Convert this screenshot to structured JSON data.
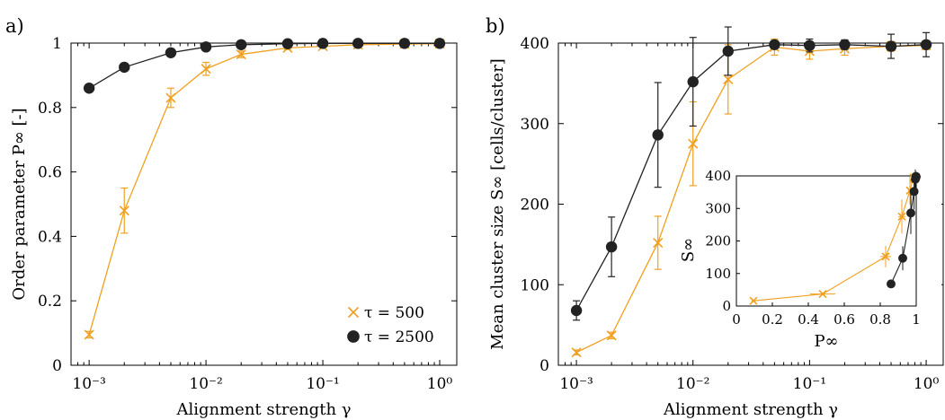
{
  "chart_data": [
    {
      "panel_label": "a)",
      "type": "line",
      "x_scale": "log",
      "xlim": [
        0.0007,
        1.4
      ],
      "ylim": [
        0,
        1
      ],
      "xlabel": "Alignment strength γ",
      "ylabel": "Order parameter P∞ [-]",
      "xticks": [
        0.001,
        0.01,
        0.1,
        1
      ],
      "xtick_labels": [
        "10⁻³",
        "10⁻²",
        "10⁻¹",
        "10⁰"
      ],
      "yticks": [
        0,
        0.2,
        0.4,
        0.6,
        0.8,
        1
      ],
      "ytick_labels": [
        "0",
        "0.2",
        "0.4",
        "0.6",
        "0.8",
        "1"
      ],
      "legend_position": "bottom-right",
      "series": [
        {
          "name": "τ = 500",
          "color": "#f0a020",
          "marker": "x",
          "x": [
            0.001,
            0.002,
            0.005,
            0.01,
            0.02,
            0.05,
            0.1,
            0.2,
            0.5,
            1
          ],
          "y": [
            0.095,
            0.48,
            0.83,
            0.92,
            0.965,
            0.985,
            0.99,
            0.995,
            0.997,
            0.998
          ],
          "err": [
            0.01,
            0.07,
            0.03,
            0.02,
            0.01,
            0.005,
            0.004,
            0.003,
            0.002,
            0.002
          ]
        },
        {
          "name": "τ = 2500",
          "color": "#222222",
          "marker": "o",
          "x": [
            0.001,
            0.002,
            0.005,
            0.01,
            0.02,
            0.05,
            0.1,
            0.2,
            0.5,
            1
          ],
          "y": [
            0.86,
            0.925,
            0.97,
            0.988,
            0.995,
            0.998,
            0.999,
            0.999,
            0.999,
            0.999
          ],
          "err": [
            0.01,
            0.01,
            0.006,
            0.004,
            0.003,
            0.002,
            0.001,
            0.001,
            0.001,
            0.001
          ]
        }
      ]
    },
    {
      "panel_label": "b)",
      "type": "line",
      "x_scale": "log",
      "xlim": [
        0.0007,
        1.4
      ],
      "ylim": [
        0,
        400
      ],
      "xlabel": "Alignment strength γ",
      "ylabel": "Mean cluster size S∞ [cells/cluster]",
      "xticks": [
        0.001,
        0.01,
        0.1,
        1
      ],
      "xtick_labels": [
        "10⁻³",
        "10⁻²",
        "10⁻¹",
        "10⁰"
      ],
      "yticks": [
        0,
        100,
        200,
        300,
        400
      ],
      "ytick_labels": [
        "0",
        "100",
        "200",
        "300",
        "400"
      ],
      "series": [
        {
          "name": "τ = 500",
          "color": "#f0a020",
          "marker": "x",
          "x": [
            0.001,
            0.002,
            0.005,
            0.01,
            0.02,
            0.05,
            0.1,
            0.2,
            0.5,
            1
          ],
          "y": [
            16,
            37,
            152,
            275,
            355,
            395,
            390,
            393,
            396,
            397
          ],
          "err": [
            3,
            4,
            33,
            52,
            43,
            10,
            10,
            8,
            6,
            5
          ]
        },
        {
          "name": "τ = 2500",
          "color": "#222222",
          "marker": "o",
          "x": [
            0.001,
            0.002,
            0.005,
            0.01,
            0.02,
            0.05,
            0.1,
            0.2,
            0.5,
            1
          ],
          "y": [
            68,
            147,
            286,
            352,
            390,
            398,
            397,
            398,
            396,
            398
          ],
          "err": [
            12,
            37,
            65,
            55,
            30,
            5,
            8,
            6,
            15,
            15
          ]
        }
      ],
      "inset": {
        "type": "scatter",
        "xlim": [
          0,
          1
        ],
        "ylim": [
          0,
          400
        ],
        "xlabel": "P∞",
        "ylabel": "S∞",
        "xticks": [
          0,
          0.2,
          0.4,
          0.6,
          0.8,
          1
        ],
        "xtick_labels": [
          "0",
          "0.2",
          "0.4",
          "0.6",
          "0.8",
          "1"
        ],
        "yticks": [
          0,
          100,
          200,
          300,
          400
        ],
        "ytick_labels": [
          "0",
          "100",
          "200",
          "300",
          "400"
        ],
        "series": [
          {
            "name": "τ = 500",
            "color": "#f0a020",
            "marker": "x",
            "x": [
              0.095,
              0.48,
              0.83,
              0.92,
              0.965,
              0.985,
              0.99,
              0.995,
              0.997,
              0.998
            ],
            "y": [
              16,
              37,
              152,
              275,
              355,
              395,
              390,
              393,
              396,
              397
            ],
            "xerr": [
              0.01,
              0.07,
              0.03,
              0.02,
              0.01,
              0.005,
              0.004,
              0.003,
              0.002,
              0.002
            ],
            "yerr": [
              3,
              4,
              33,
              52,
              43,
              10,
              10,
              8,
              6,
              5
            ]
          },
          {
            "name": "τ = 2500",
            "color": "#222222",
            "marker": "o",
            "x": [
              0.86,
              0.925,
              0.97,
              0.988,
              0.995,
              0.998,
              0.999,
              0.999,
              0.999,
              0.999
            ],
            "y": [
              68,
              147,
              286,
              352,
              390,
              398,
              397,
              398,
              396,
              398
            ],
            "xerr": [
              0.01,
              0.01,
              0.006,
              0.004,
              0.003,
              0.002,
              0.001,
              0.001,
              0.001,
              0.001
            ],
            "yerr": [
              12,
              37,
              65,
              55,
              30,
              5,
              8,
              6,
              15,
              15
            ]
          }
        ]
      }
    }
  ]
}
